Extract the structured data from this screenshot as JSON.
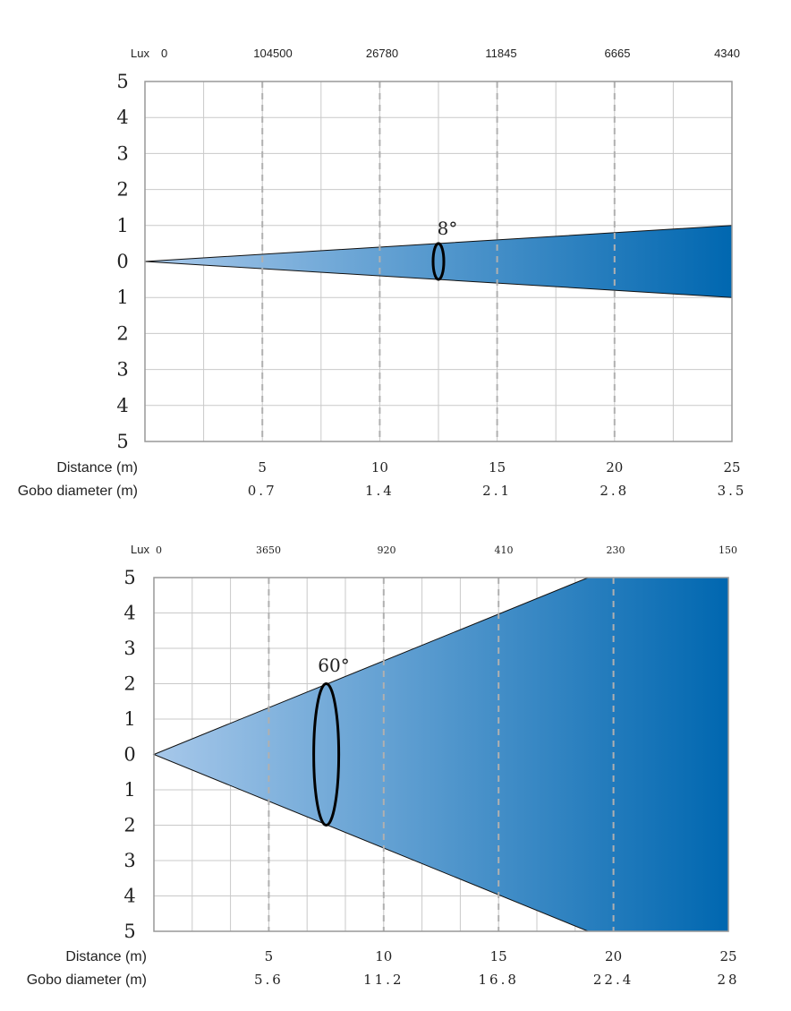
{
  "colors": {
    "beam_light": "#9cc0e6",
    "beam_dark": "#0067b0",
    "grid": "#c9c9c9",
    "dash": "#b0b0b0",
    "axis": "#999999",
    "text": "#222222"
  },
  "chart_data": [
    {
      "type": "area",
      "beam_angle_label": "8°",
      "lux_label": "Lux",
      "lux_values": [
        "0",
        "104500",
        "26780",
        "11845",
        "6665",
        "4340"
      ],
      "y_tick_labels": [
        "5",
        "4",
        "3",
        "2",
        "1",
        "0",
        "1",
        "2",
        "3",
        "4",
        "5"
      ],
      "ylim": [
        -5,
        5
      ],
      "xlim": [
        0,
        25
      ],
      "x_grid_step": 2.5,
      "distance_label": "Distance (m)",
      "distance_values": [
        "5",
        "10",
        "15",
        "20",
        "25"
      ],
      "distance_positions": [
        5,
        10,
        15,
        20,
        25
      ],
      "gobo_label": "Gobo diameter (m)",
      "gobo_values": [
        "0.7",
        "1.4",
        "2.1",
        "2.8",
        "3.5"
      ],
      "beam_half_width_at_end": 1.0,
      "ellipse_center_x": 12.5,
      "ellipse_half_height": 0.5,
      "grid": true
    },
    {
      "type": "area",
      "beam_angle_label": "60°",
      "lux_label": "Lux",
      "lux_values": [
        "0",
        "3650",
        "920",
        "410",
        "230",
        "150"
      ],
      "y_tick_labels": [
        "5",
        "4",
        "3",
        "2",
        "1",
        "0",
        "1",
        "2",
        "3",
        "4",
        "5"
      ],
      "ylim": [
        -5,
        5
      ],
      "xlim": [
        0,
        25
      ],
      "x_grid_step": 1.67,
      "distance_label": "Distance (m)",
      "distance_values": [
        "5",
        "10",
        "15",
        "20",
        "25"
      ],
      "distance_positions": [
        5,
        10,
        15,
        20,
        25
      ],
      "gobo_label": "Gobo diameter (m)",
      "gobo_values": [
        "5.6",
        "11.2",
        "16.8",
        "22.4",
        "28"
      ],
      "beam_clip_x": 18.9,
      "ellipse_center_x": 7.5,
      "ellipse_half_height": 2.0,
      "grid": true
    }
  ]
}
